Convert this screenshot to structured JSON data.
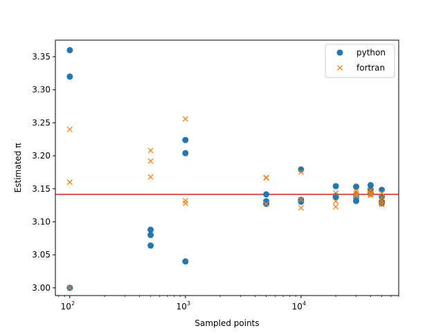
{
  "chart_data": {
    "type": "scatter",
    "xlabel": "Sampled points",
    "ylabel": "Estimated π",
    "xscale": "log",
    "xlim": [
      75,
      70000
    ],
    "ylim": [
      2.9883,
      3.3752
    ],
    "x_ticks": [
      100,
      1000,
      10000
    ],
    "x_tick_labels": [
      {
        "base": "10",
        "exp": "2"
      },
      {
        "base": "10",
        "exp": "3"
      },
      {
        "base": "10",
        "exp": "4"
      }
    ],
    "y_ticks": [
      3.0,
      3.05,
      3.1,
      3.15,
      3.2,
      3.25,
      3.3,
      3.35
    ],
    "y_tick_labels": [
      "3.00",
      "3.05",
      "3.10",
      "3.15",
      "3.20",
      "3.25",
      "3.30",
      "3.35"
    ],
    "grid": false,
    "legend_position": "upper right",
    "reference_line": {
      "y": 3.14159,
      "color": "#d62728"
    },
    "series": [
      {
        "name": "python",
        "marker": "circle",
        "color": "#1f77b4",
        "points": [
          [
            100,
            3.36
          ],
          [
            100,
            3.32
          ],
          [
            100,
            3.0
          ],
          [
            500,
            3.088
          ],
          [
            500,
            3.08
          ],
          [
            500,
            3.064
          ],
          [
            1000,
            3.224
          ],
          [
            1000,
            3.204
          ],
          [
            1000,
            3.04
          ],
          [
            5000,
            3.1416
          ],
          [
            5000,
            3.1312
          ],
          [
            5000,
            3.1272
          ],
          [
            10000,
            3.1792
          ],
          [
            10000,
            3.1332
          ],
          [
            10000,
            3.1304
          ],
          [
            20000,
            3.154
          ],
          [
            20000,
            3.1396
          ],
          [
            20000,
            3.1374
          ],
          [
            30000,
            3.1532
          ],
          [
            30000,
            3.1412
          ],
          [
            30000,
            3.1364
          ],
          [
            30000,
            3.1316
          ],
          [
            40000,
            3.1555
          ],
          [
            40000,
            3.1495
          ],
          [
            40000,
            3.1447
          ],
          [
            40000,
            3.1425
          ],
          [
            50000,
            3.1484
          ],
          [
            50000,
            3.1384
          ],
          [
            50000,
            3.1308
          ],
          [
            50000,
            3.128
          ]
        ]
      },
      {
        "name": "fortran",
        "marker": "x",
        "color": "#ff7f0e",
        "points": [
          [
            100,
            3.24
          ],
          [
            100,
            3.16
          ],
          [
            100,
            3.0
          ],
          [
            500,
            3.208
          ],
          [
            500,
            3.192
          ],
          [
            500,
            3.168
          ],
          [
            1000,
            3.256
          ],
          [
            1000,
            3.132
          ],
          [
            1000,
            3.128
          ],
          [
            5000,
            3.1672
          ],
          [
            5000,
            3.1664
          ],
          [
            5000,
            3.1272
          ],
          [
            10000,
            3.1752
          ],
          [
            10000,
            3.1336
          ],
          [
            10000,
            3.1212
          ],
          [
            20000,
            3.1438
          ],
          [
            20000,
            3.131
          ],
          [
            20000,
            3.1228
          ],
          [
            30000,
            3.1468
          ],
          [
            30000,
            3.1436
          ],
          [
            30000,
            3.1408
          ],
          [
            30000,
            3.1388
          ],
          [
            40000,
            3.1478
          ],
          [
            40000,
            3.1434
          ],
          [
            40000,
            3.1414
          ],
          [
            40000,
            3.1402
          ],
          [
            50000,
            3.1436
          ],
          [
            50000,
            3.1364
          ],
          [
            50000,
            3.1312
          ],
          [
            50000,
            3.1264
          ]
        ]
      }
    ]
  }
}
